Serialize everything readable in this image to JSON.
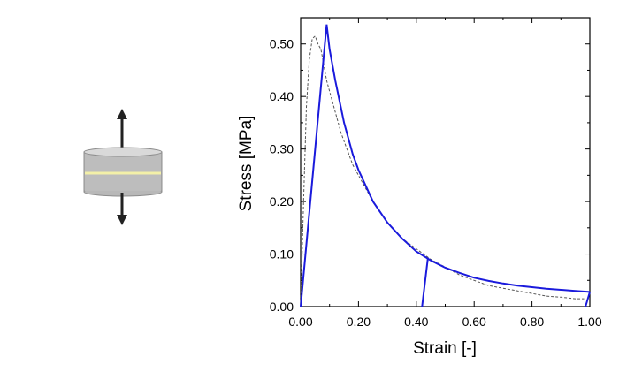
{
  "chart_data": {
    "type": "line",
    "xlabel": "Strain [-]",
    "ylabel": "Stress [MPa]",
    "xlim": [
      0,
      1
    ],
    "ylim": [
      0,
      0.55
    ],
    "x_ticks": [
      "0.00",
      "0.20",
      "0.40",
      "0.60",
      "0.80",
      "1.00"
    ],
    "y_ticks": [
      "0.00",
      "0.10",
      "0.20",
      "0.30",
      "0.40",
      "0.50"
    ],
    "grid": false,
    "legend": "none",
    "series": [
      {
        "style": "dashed",
        "color": "#555555",
        "x": [
          0.0,
          0.01,
          0.02,
          0.03,
          0.04,
          0.05,
          0.06,
          0.07,
          0.08,
          0.09,
          0.1,
          0.12,
          0.14,
          0.16,
          0.18,
          0.2,
          0.25,
          0.3,
          0.35,
          0.4,
          0.45,
          0.5,
          0.55,
          0.6,
          0.65,
          0.7,
          0.75,
          0.8,
          0.85,
          0.9,
          0.95,
          0.98
        ],
        "y": [
          0.0,
          0.2,
          0.38,
          0.47,
          0.51,
          0.515,
          0.5,
          0.49,
          0.46,
          0.43,
          0.41,
          0.37,
          0.33,
          0.3,
          0.27,
          0.25,
          0.2,
          0.16,
          0.13,
          0.11,
          0.09,
          0.075,
          0.06,
          0.05,
          0.04,
          0.035,
          0.03,
          0.025,
          0.02,
          0.018,
          0.015,
          0.015
        ]
      },
      {
        "style": "solid",
        "color": "#1a1adc",
        "x": [
          0.0,
          0.09,
          0.1,
          0.12,
          0.15,
          0.18,
          0.2,
          0.25,
          0.3,
          0.35,
          0.4,
          0.45,
          0.5,
          0.55,
          0.6,
          0.65,
          0.7,
          0.75,
          0.8,
          0.85,
          0.9,
          0.95,
          1.0
        ],
        "y": [
          0.0,
          0.537,
          0.49,
          0.43,
          0.35,
          0.29,
          0.26,
          0.2,
          0.16,
          0.13,
          0.105,
          0.088,
          0.074,
          0.064,
          0.055,
          0.049,
          0.044,
          0.04,
          0.037,
          0.034,
          0.032,
          0.03,
          0.028
        ]
      },
      {
        "style": "solid",
        "color": "#1a1adc",
        "x": [
          0.42,
          0.44
        ],
        "y": [
          0.0,
          0.093
        ]
      },
      {
        "style": "solid",
        "color": "#1a1adc",
        "x": [
          0.985,
          1.0
        ],
        "y": [
          0.0,
          0.028
        ]
      }
    ]
  },
  "specimen": {
    "arrow_color": "#222222",
    "cylinder_top_color": "#d9d9d9",
    "cylinder_side_color": "#b8b8b8",
    "bond_line_color": "#f3f0a8"
  }
}
